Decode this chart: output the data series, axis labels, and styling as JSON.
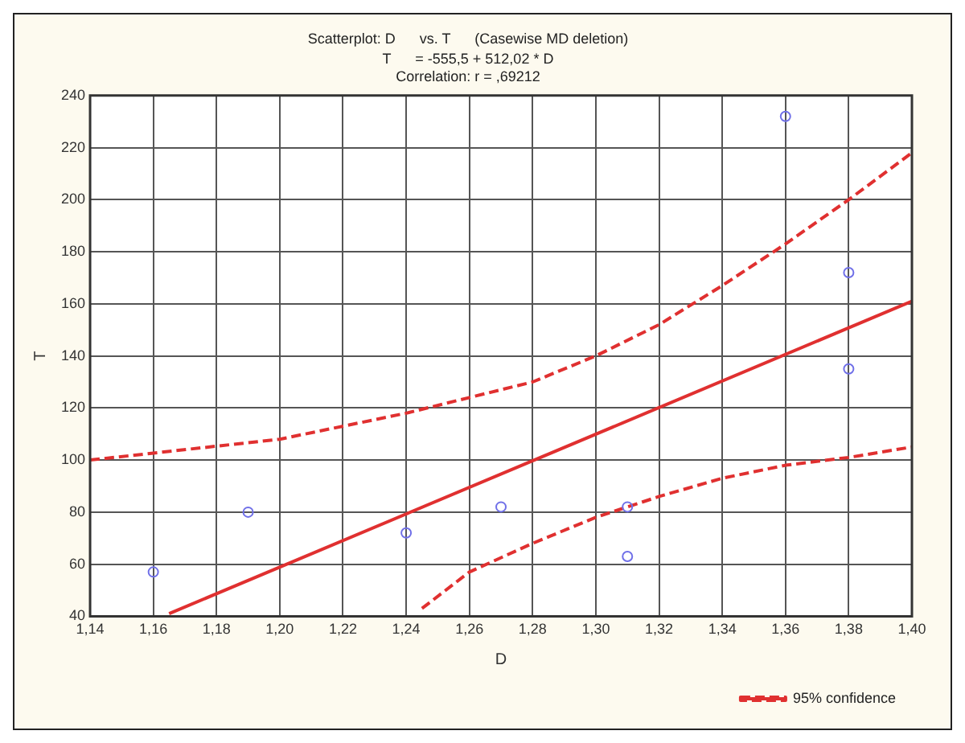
{
  "chart_data": {
    "type": "scatter",
    "title": "Scatterplot: D      vs. T      (Casewise MD deletion)",
    "subtitle": [
      "T      = -555,5 + 512,02 * D",
      "Correlation: r = ,69212"
    ],
    "xlabel": "D",
    "ylabel": "T",
    "xlim": [
      1.14,
      1.4
    ],
    "ylim": [
      40,
      240
    ],
    "xticks": [
      {
        "value": 1.14,
        "label": "1,14"
      },
      {
        "value": 1.16,
        "label": "1,16"
      },
      {
        "value": 1.18,
        "label": "1,18"
      },
      {
        "value": 1.2,
        "label": "1,20"
      },
      {
        "value": 1.22,
        "label": "1,22"
      },
      {
        "value": 1.24,
        "label": "1,24"
      },
      {
        "value": 1.26,
        "label": "1,26"
      },
      {
        "value": 1.28,
        "label": "1,28"
      },
      {
        "value": 1.3,
        "label": "1,30"
      },
      {
        "value": 1.32,
        "label": "1,32"
      },
      {
        "value": 1.34,
        "label": "1,34"
      },
      {
        "value": 1.36,
        "label": "1,36"
      },
      {
        "value": 1.38,
        "label": "1,38"
      },
      {
        "value": 1.4,
        "label": "1,40"
      }
    ],
    "yticks": [
      40,
      60,
      80,
      100,
      120,
      140,
      160,
      180,
      200,
      220,
      240
    ],
    "grid": true,
    "legend": "bottom right",
    "marker": "circle",
    "series": [
      {
        "type": "scatter",
        "color": "#7070e8",
        "x": [
          1.16,
          1.19,
          1.24,
          1.27,
          1.31,
          1.31,
          1.36,
          1.38,
          1.38
        ],
        "values": [
          57,
          80,
          72,
          82,
          82,
          63,
          232,
          172,
          135
        ]
      },
      {
        "type": "line",
        "color": "#e03030",
        "line_style": "solid",
        "marker": "none",
        "x": [
          1.165,
          1.4
        ],
        "values": [
          41,
          161
        ]
      },
      {
        "type": "line",
        "name": "95% confidence",
        "color": "#e03030",
        "line_style": "dashed",
        "marker": "none",
        "x": [
          1.14,
          1.2,
          1.24,
          1.28,
          1.3,
          1.32,
          1.34,
          1.36,
          1.38,
          1.4
        ],
        "values": [
          100,
          108,
          118,
          130,
          140,
          152,
          167,
          183,
          200,
          218
        ]
      },
      {
        "type": "line",
        "color": "#e03030",
        "line_style": "dashed",
        "marker": "none",
        "x": [
          1.245,
          1.26,
          1.28,
          1.3,
          1.32,
          1.34,
          1.36,
          1.38,
          1.4
        ],
        "values": [
          43,
          57,
          68,
          78,
          86,
          93,
          98,
          101,
          105
        ]
      }
    ]
  }
}
